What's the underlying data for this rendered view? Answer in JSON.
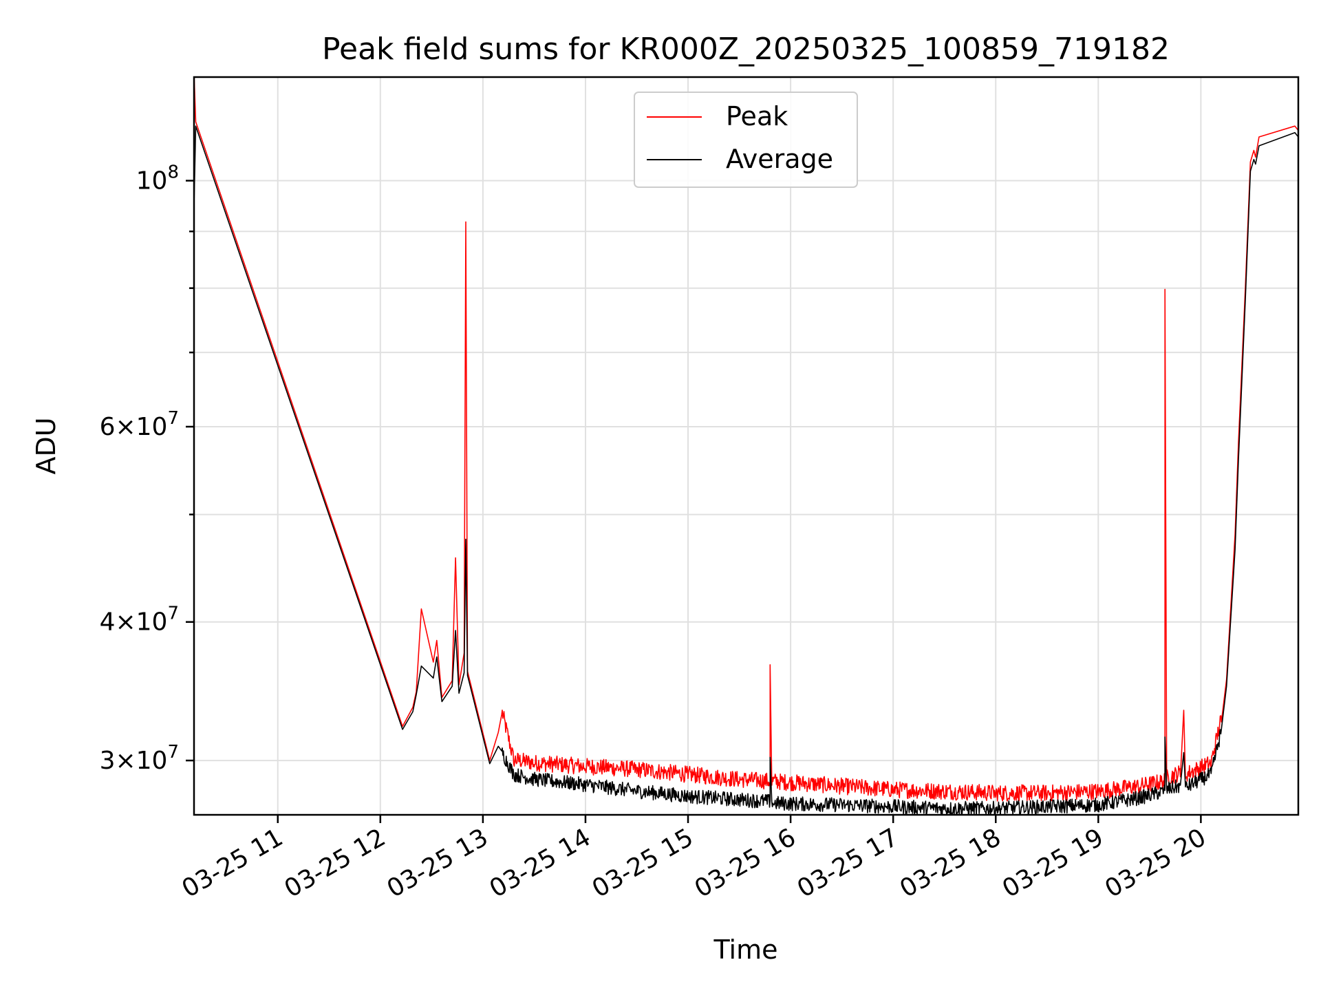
{
  "chart_data": {
    "type": "line",
    "title": "Peak field sums for KR000Z_20250325_100859_719182",
    "xlabel": "Time",
    "ylabel": "ADU",
    "y_scale": "log",
    "xlim": [
      "2025-03-25 10:11",
      "2025-03-25 20:57"
    ],
    "ylim": [
      26800000,
      124000000
    ],
    "x_ticks": [
      {
        "value": "2025-03-25 11:00",
        "label": "03-25 11"
      },
      {
        "value": "2025-03-25 12:00",
        "label": "03-25 12"
      },
      {
        "value": "2025-03-25 13:00",
        "label": "03-25 13"
      },
      {
        "value": "2025-03-25 14:00",
        "label": "03-25 14"
      },
      {
        "value": "2025-03-25 15:00",
        "label": "03-25 15"
      },
      {
        "value": "2025-03-25 16:00",
        "label": "03-25 16"
      },
      {
        "value": "2025-03-25 17:00",
        "label": "03-25 17"
      },
      {
        "value": "2025-03-25 18:00",
        "label": "03-25 18"
      },
      {
        "value": "2025-03-25 19:00",
        "label": "03-25 19"
      },
      {
        "value": "2025-03-25 20:00",
        "label": "03-25 20"
      }
    ],
    "y_major_ticks": [
      {
        "value": 30000000,
        "base": "3",
        "exp": "7"
      },
      {
        "value": 40000000,
        "base": "4",
        "exp": "7"
      },
      {
        "value": 60000000,
        "base": "6",
        "exp": "7"
      },
      {
        "value": 100000000,
        "base": "",
        "exp": "8"
      }
    ],
    "y_minor_ticks": [
      50000000,
      70000000,
      80000000,
      90000000
    ],
    "grid": true,
    "legend": {
      "placement": "upper center"
    },
    "series": [
      {
        "name": "Peak",
        "color": "#ff0000",
        "points": [
          [
            "2025-03-25 10:11",
            97000000
          ],
          [
            "2025-03-25 10:11",
            125000000
          ],
          [
            "2025-03-25 10:12",
            113000000
          ],
          [
            "2025-03-25 12:13",
            32200000
          ],
          [
            "2025-03-25 12:19",
            33500000
          ],
          [
            "2025-03-25 12:21",
            34600000
          ],
          [
            "2025-03-25 12:24",
            41100000
          ],
          [
            "2025-03-25 12:31",
            36800000
          ],
          [
            "2025-03-25 12:33",
            38500000
          ],
          [
            "2025-03-25 12:36",
            34200000
          ],
          [
            "2025-03-25 12:42",
            35400000
          ],
          [
            "2025-03-25 12:44",
            45700000
          ],
          [
            "2025-03-25 12:46",
            35100000
          ],
          [
            "2025-03-25 12:49",
            37500000
          ],
          [
            "2025-03-25 12:50",
            91800000
          ],
          [
            "2025-03-25 12:51",
            36100000
          ],
          [
            "2025-03-25 13:04",
            30000000
          ],
          [
            "2025-03-25 13:09",
            31800000
          ],
          [
            "2025-03-25 13:11",
            33000000
          ],
          [
            "2025-03-25 13:18",
            29800000
          ],
          [
            "2025-03-25 13:30",
            29600000
          ],
          [
            "2025-03-25 13:58",
            29400000
          ],
          [
            "2025-03-25 14:30",
            29200000
          ],
          [
            "2025-03-25 15:00",
            28900000
          ],
          [
            "2025-03-25 15:30",
            28600000
          ],
          [
            "2025-03-25 15:48",
            28500000
          ],
          [
            "2025-03-25 15:48",
            36600000
          ],
          [
            "2025-03-25 15:49",
            28500000
          ],
          [
            "2025-03-25 16:30",
            28200000
          ],
          [
            "2025-03-25 17:00",
            28000000
          ],
          [
            "2025-03-25 17:30",
            27900000
          ],
          [
            "2025-03-25 18:00",
            27800000
          ],
          [
            "2025-03-25 18:30",
            27800000
          ],
          [
            "2025-03-25 19:00",
            27900000
          ],
          [
            "2025-03-25 19:24",
            28200000
          ],
          [
            "2025-03-25 19:39",
            28500000
          ],
          [
            "2025-03-25 19:39",
            79800000
          ],
          [
            "2025-03-25 19:40",
            28700000
          ],
          [
            "2025-03-25 19:48",
            29000000
          ],
          [
            "2025-03-25 19:50",
            33300000
          ],
          [
            "2025-03-25 19:51",
            28900000
          ],
          [
            "2025-03-25 20:06",
            29600000
          ],
          [
            "2025-03-25 20:12",
            32500000
          ],
          [
            "2025-03-25 20:15",
            35500000
          ],
          [
            "2025-03-25 20:20",
            48000000
          ],
          [
            "2025-03-25 20:22",
            58000000
          ],
          [
            "2025-03-25 20:26",
            80000000
          ],
          [
            "2025-03-25 20:29",
            104000000
          ],
          [
            "2025-03-25 20:31",
            106500000
          ],
          [
            "2025-03-25 20:32",
            105000000
          ],
          [
            "2025-03-25 20:34",
            109500000
          ],
          [
            "2025-03-25 20:55",
            112000000
          ],
          [
            "2025-03-25 20:57",
            111000000
          ]
        ]
      },
      {
        "name": "Average",
        "color": "#000000",
        "points": [
          [
            "2025-03-25 10:11",
            95000000
          ],
          [
            "2025-03-25 10:12",
            112000000
          ],
          [
            "2025-03-25 12:13",
            32000000
          ],
          [
            "2025-03-25 12:19",
            33200000
          ],
          [
            "2025-03-25 12:21",
            34400000
          ],
          [
            "2025-03-25 12:24",
            36500000
          ],
          [
            "2025-03-25 12:31",
            35600000
          ],
          [
            "2025-03-25 12:33",
            37200000
          ],
          [
            "2025-03-25 12:36",
            33900000
          ],
          [
            "2025-03-25 12:42",
            35000000
          ],
          [
            "2025-03-25 12:44",
            39300000
          ],
          [
            "2025-03-25 12:46",
            34500000
          ],
          [
            "2025-03-25 12:49",
            36000000
          ],
          [
            "2025-03-25 12:50",
            47500000
          ],
          [
            "2025-03-25 12:51",
            35800000
          ],
          [
            "2025-03-25 13:04",
            29800000
          ],
          [
            "2025-03-25 13:09",
            30900000
          ],
          [
            "2025-03-25 13:11",
            30600000
          ],
          [
            "2025-03-25 13:18",
            29200000
          ],
          [
            "2025-03-25 13:30",
            28900000
          ],
          [
            "2025-03-25 13:58",
            28600000
          ],
          [
            "2025-03-25 14:30",
            28200000
          ],
          [
            "2025-03-25 15:00",
            27900000
          ],
          [
            "2025-03-25 15:30",
            27700000
          ],
          [
            "2025-03-25 15:48",
            27600000
          ],
          [
            "2025-03-25 15:48",
            30200000
          ],
          [
            "2025-03-25 15:49",
            27500000
          ],
          [
            "2025-03-25 16:30",
            27400000
          ],
          [
            "2025-03-25 17:00",
            27300000
          ],
          [
            "2025-03-25 17:30",
            27200000
          ],
          [
            "2025-03-25 18:00",
            27200000
          ],
          [
            "2025-03-25 18:30",
            27300000
          ],
          [
            "2025-03-25 19:00",
            27400000
          ],
          [
            "2025-03-25 19:24",
            27800000
          ],
          [
            "2025-03-25 19:39",
            28200000
          ],
          [
            "2025-03-25 19:39",
            31500000
          ],
          [
            "2025-03-25 19:40",
            28300000
          ],
          [
            "2025-03-25 19:48",
            28500000
          ],
          [
            "2025-03-25 19:50",
            30500000
          ],
          [
            "2025-03-25 19:51",
            28400000
          ],
          [
            "2025-03-25 20:06",
            29200000
          ],
          [
            "2025-03-25 20:12",
            32000000
          ],
          [
            "2025-03-25 20:15",
            35000000
          ],
          [
            "2025-03-25 20:20",
            46500000
          ],
          [
            "2025-03-25 20:22",
            56000000
          ],
          [
            "2025-03-25 20:26",
            78000000
          ],
          [
            "2025-03-25 20:29",
            102000000
          ],
          [
            "2025-03-25 20:31",
            104500000
          ],
          [
            "2025-03-25 20:32",
            103500000
          ],
          [
            "2025-03-25 20:34",
            107500000
          ],
          [
            "2025-03-25 20:55",
            110500000
          ],
          [
            "2025-03-25 20:57",
            109500000
          ]
        ]
      }
    ]
  }
}
